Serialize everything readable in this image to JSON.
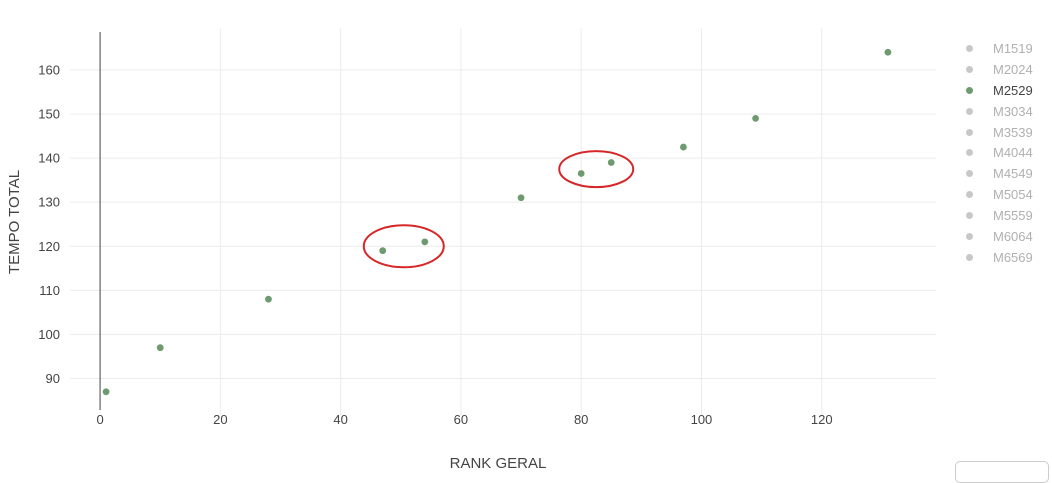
{
  "chart_data": {
    "type": "scatter",
    "xlabel": "RANK GERAL",
    "ylabel": "TEMPO TOTAL",
    "xlim": [
      -5,
      139
    ],
    "ylim": [
      81.5,
      169.5
    ],
    "x_ticks": [
      0,
      20,
      40,
      60,
      80,
      100,
      120
    ],
    "y_ticks": [
      90,
      100,
      110,
      120,
      130,
      140,
      150,
      160
    ],
    "grid": true,
    "legend_position": "right",
    "series": [
      {
        "name": "M2529",
        "color": "#6e9a70",
        "points": [
          {
            "x": 1,
            "y": 87
          },
          {
            "x": 10,
            "y": 97
          },
          {
            "x": 28,
            "y": 108
          },
          {
            "x": 47,
            "y": 119
          },
          {
            "x": 54,
            "y": 121
          },
          {
            "x": 70,
            "y": 131
          },
          {
            "x": 80,
            "y": 136.5
          },
          {
            "x": 85,
            "y": 139
          },
          {
            "x": 97,
            "y": 142.5
          },
          {
            "x": 109,
            "y": 149
          },
          {
            "x": 131,
            "y": 164
          }
        ]
      }
    ],
    "legend": [
      {
        "label": "M1519",
        "active": false
      },
      {
        "label": "M2024",
        "active": false
      },
      {
        "label": "M2529",
        "active": true
      },
      {
        "label": "M3034",
        "active": false
      },
      {
        "label": "M3539",
        "active": false
      },
      {
        "label": "M4044",
        "active": false
      },
      {
        "label": "M4549",
        "active": false
      },
      {
        "label": "M5054",
        "active": false
      },
      {
        "label": "M5559",
        "active": false
      },
      {
        "label": "M6064",
        "active": false
      },
      {
        "label": "M6569",
        "active": false
      }
    ],
    "annotations": [
      {
        "type": "ellipse",
        "color": "#d62728",
        "cx": 50.5,
        "cy": 120
      },
      {
        "type": "ellipse",
        "color": "#d62728",
        "cx": 82.5,
        "cy": 137.5
      }
    ]
  }
}
